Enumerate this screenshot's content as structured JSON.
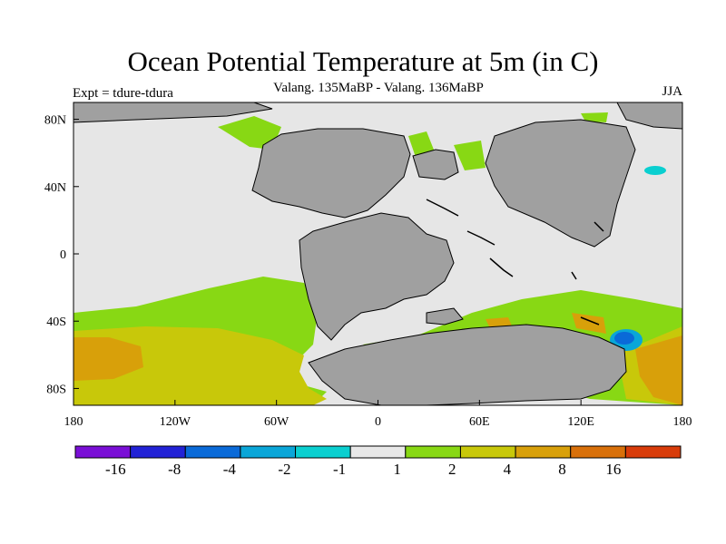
{
  "title": "Ocean Potential Temperature at 5m (in C)",
  "subtitle": "Valang.  135MaBP - Valang.  136MaBP",
  "left_label": "Expt = tdure-tdura",
  "right_label": "JJA",
  "map": {
    "lon_range": [
      -180,
      180
    ],
    "lat_range": [
      -90,
      90
    ],
    "lon_ticks": [
      {
        "value": -180,
        "label": "180"
      },
      {
        "value": -120,
        "label": "120W"
      },
      {
        "value": -60,
        "label": "60W"
      },
      {
        "value": 0,
        "label": "0"
      },
      {
        "value": 60,
        "label": "60E"
      },
      {
        "value": 120,
        "label": "120E"
      },
      {
        "value": 180,
        "label": "180"
      }
    ],
    "lat_ticks": [
      {
        "value": 80,
        "label": "80N"
      },
      {
        "value": 40,
        "label": "40N"
      },
      {
        "value": 0,
        "label": "0"
      },
      {
        "value": -40,
        "label": "40S"
      },
      {
        "value": -80,
        "label": "80S"
      }
    ],
    "colors": {
      "land": "#a0a0a0",
      "ocean_neutral": "#e6e6e6",
      "frame": "#000000"
    }
  },
  "colorbar": {
    "colors": [
      "#7a0fd6",
      "#2222d6",
      "#0a6ad8",
      "#0aa6d8",
      "#0acfd0",
      "#e8e8e8",
      "#88d814",
      "#c8c80a",
      "#d8a00a",
      "#d8700a",
      "#d83c0a"
    ],
    "labels": [
      "-16",
      "-8",
      "-4",
      "-2",
      "-1",
      "1",
      "2",
      "4",
      "8",
      "16"
    ]
  }
}
